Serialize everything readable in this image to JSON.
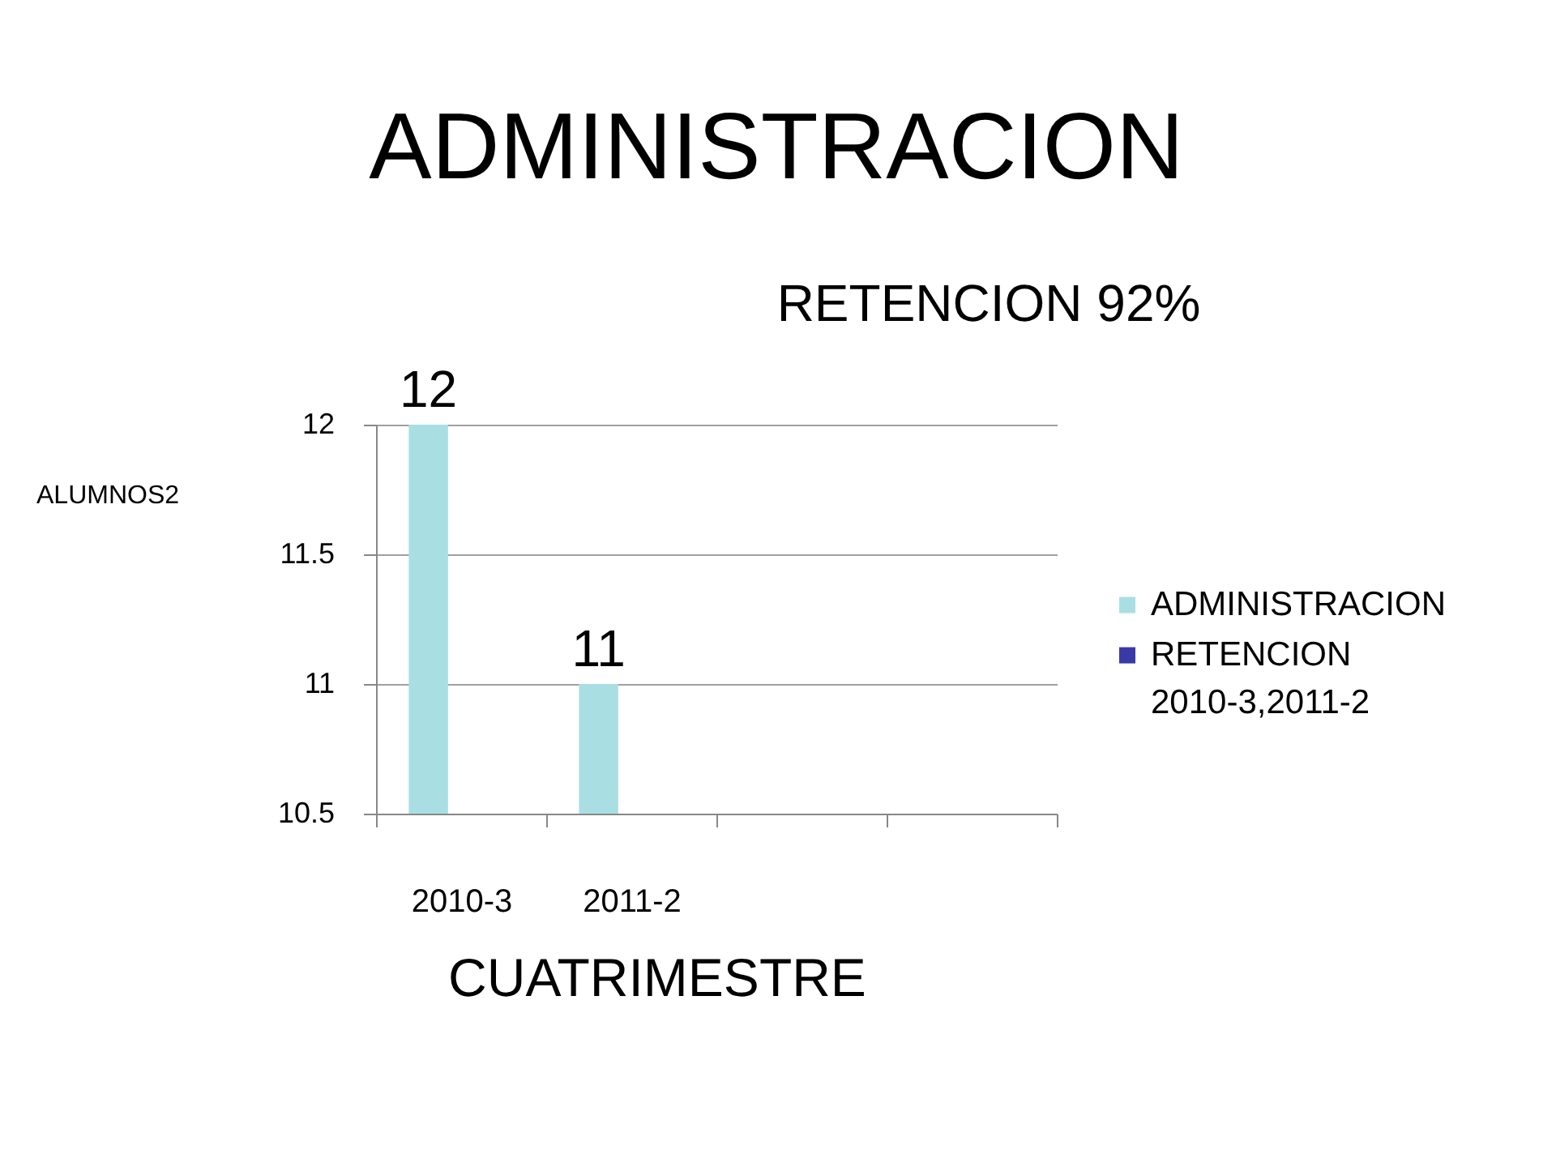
{
  "chart_data": {
    "type": "bar",
    "title": "ADMINISTRACION",
    "subtitle": "RETENCION 92%",
    "xlabel": "CUATRIMESTRE",
    "ylabel": "ALUMNOS2",
    "categories": [
      "2010-3",
      "2011-2",
      null,
      null
    ],
    "series": [
      {
        "name": "ADMINISTRACION",
        "color": "#a9dfe3",
        "values": [
          12,
          11,
          null,
          null
        ]
      },
      {
        "name": "RETENCION",
        "color": "#3a3aa6",
        "values": [
          null,
          null,
          null,
          null
        ]
      }
    ],
    "annotations": [
      "2010-3,2011-2"
    ],
    "ylim": [
      10.5,
      12
    ],
    "yticks": [
      10.5,
      11,
      11.5,
      12
    ],
    "grid": "y",
    "legend": "right",
    "data_labels": true
  }
}
